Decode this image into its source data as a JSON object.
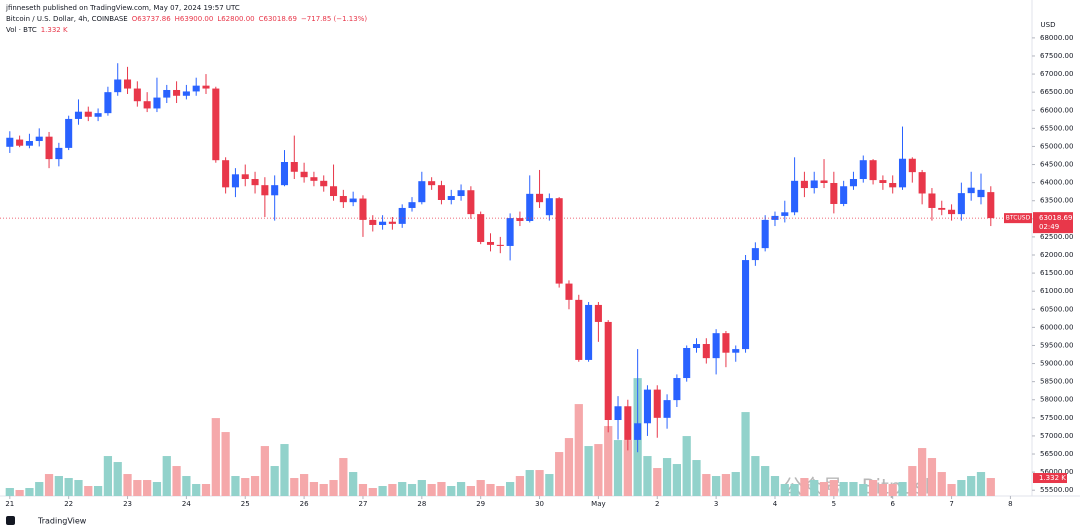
{
  "chart_data": {
    "type": "candlestick",
    "publisher": "jfinneseth published on TradingView.com, May 07, 2024 19:57 UTC",
    "title": "Bitcoin / U.S. Dollar, 4h, COINBASE",
    "ohlc_text": [
      "O63737.86",
      "H63900.00",
      "L62800.00",
      "C63018.69",
      "−717.85 (−1.13%)"
    ],
    "volume_title": "Vol · BTC",
    "volume_label": "1.332 K",
    "currency": "USD",
    "symbol": "BTCUSD",
    "countdown": "02:49",
    "brand": "TradingView",
    "watermark": "公众号 · Bitpush",
    "up_color": "#2962ff",
    "down_color": "#e8374a",
    "up_volume_color": "#92d2cb",
    "down_volume_color": "#f5a8aa",
    "open": [
      64990,
      65190,
      65020,
      65150,
      65270,
      64650,
      64960,
      65760,
      65960,
      65820,
      65920,
      66500,
      66850,
      66600,
      66250,
      66050,
      66350,
      66560,
      66400,
      66520,
      66680,
      66600,
      64620,
      63870,
      64230,
      64100,
      63930,
      63650,
      63930,
      64570,
      64300,
      64150,
      64050,
      63900,
      63630,
      63460,
      63560,
      62970,
      62830,
      62920,
      62860,
      63300,
      63460,
      64040,
      63930,
      63520,
      63630,
      63790,
      63130,
      62360,
      62280,
      62250,
      63020,
      62940,
      63690,
      63100,
      63570,
      61210,
      60760,
      59100,
      60620,
      60150,
      57440,
      57820,
      56890,
      57350,
      58280,
      57500,
      57990,
      58600,
      59430,
      59540,
      59150,
      59840,
      59300,
      59400,
      61860,
      62190,
      62970,
      63080,
      63180,
      64050,
      63850,
      64060,
      63990,
      63410,
      63900,
      64100,
      64620,
      64070,
      63990,
      63870,
      64660,
      64290,
      63700,
      63300,
      63250,
      63130,
      63710,
      63600,
      63737.86
    ],
    "high": [
      65420,
      65300,
      65350,
      65500,
      65400,
      65100,
      65850,
      66300,
      66100,
      66050,
      66650,
      67300,
      67200,
      66800,
      66500,
      66900,
      66700,
      66800,
      66700,
      66900,
      67000,
      66650,
      64700,
      64400,
      64500,
      64300,
      64150,
      64200,
      64900,
      65300,
      64550,
      64300,
      64200,
      64500,
      63800,
      63750,
      63650,
      63100,
      63100,
      63050,
      63400,
      63600,
      64300,
      64150,
      64050,
      63800,
      63950,
      63900,
      63200,
      62600,
      62500,
      63150,
      63200,
      64200,
      64350,
      63700,
      63600,
      61300,
      60900,
      60700,
      60700,
      60200,
      58100,
      58000,
      59400,
      58400,
      58400,
      58150,
      58700,
      59500,
      59700,
      59700,
      59950,
      59900,
      59500,
      62000,
      62350,
      63100,
      63200,
      63500,
      64700,
      64300,
      64300,
      64650,
      64300,
      64050,
      64300,
      64750,
      64650,
      64200,
      64200,
      65550,
      64700,
      64350,
      63850,
      63500,
      63400,
      64000,
      64300,
      64250,
      63900
    ],
    "low": [
      64820,
      64980,
      64950,
      65000,
      64400,
      64450,
      64900,
      65600,
      65700,
      65700,
      65850,
      66400,
      66450,
      66100,
      65950,
      65950,
      66200,
      66200,
      66300,
      66400,
      66450,
      64550,
      63700,
      63600,
      63900,
      63700,
      63050,
      62950,
      63900,
      64100,
      64000,
      63900,
      63750,
      63500,
      63300,
      63350,
      62500,
      62650,
      62700,
      62700,
      62750,
      63200,
      63400,
      63800,
      63400,
      63400,
      63500,
      63000,
      62300,
      62100,
      62050,
      61850,
      62800,
      62900,
      63300,
      62950,
      61100,
      60500,
      59050,
      59050,
      59600,
      57100,
      56900,
      56600,
      56550,
      57000,
      56950,
      57200,
      57800,
      58500,
      59300,
      59000,
      58700,
      58900,
      59050,
      59300,
      61700,
      62100,
      62800,
      62900,
      63100,
      63600,
      63700,
      63850,
      63150,
      63350,
      63800,
      64000,
      63950,
      63800,
      63700,
      63800,
      64000,
      63400,
      62950,
      63100,
      62950,
      62950,
      63500,
      63400,
      62800
    ],
    "close": [
      65240,
      65020,
      65150,
      65270,
      64650,
      64960,
      65760,
      65960,
      65820,
      65920,
      66500,
      66850,
      66600,
      66250,
      66050,
      66350,
      66560,
      66400,
      66520,
      66680,
      66600,
      64620,
      63870,
      64230,
      64100,
      63930,
      63650,
      63930,
      64570,
      64300,
      64150,
      64050,
      63900,
      63630,
      63460,
      63560,
      62970,
      62830,
      62920,
      62860,
      63300,
      63460,
      64040,
      63930,
      63520,
      63630,
      63790,
      63130,
      62360,
      62280,
      62250,
      63020,
      62940,
      63690,
      63460,
      63570,
      61210,
      60760,
      59100,
      60620,
      60150,
      57440,
      57820,
      56890,
      57350,
      58280,
      57500,
      57990,
      58600,
      59430,
      59540,
      59150,
      59840,
      59300,
      59400,
      61860,
      62190,
      62970,
      63080,
      63180,
      64050,
      63850,
      64060,
      63990,
      63410,
      63900,
      64100,
      64620,
      64070,
      63990,
      63870,
      64660,
      64290,
      63700,
      63300,
      63250,
      63130,
      63710,
      63860,
      63800,
      63018.69
    ],
    "volume": [
      592,
      444,
      592,
      1036,
      1628,
      1480,
      1332,
      1184,
      740,
      740,
      2960,
      2516,
      1628,
      1184,
      1184,
      1036,
      2960,
      2220,
      1480,
      888,
      888,
      5772,
      4736,
      1480,
      1332,
      1480,
      3700,
      2220,
      3848,
      1332,
      1628,
      1036,
      888,
      1184,
      2812,
      1776,
      888,
      592,
      740,
      888,
      1036,
      888,
      1184,
      888,
      1036,
      740,
      1036,
      740,
      1184,
      888,
      740,
      1036,
      1480,
      1924,
      1924,
      1628,
      3256,
      4292,
      6808,
      3700,
      3848,
      5180,
      4144,
      4144,
      8732,
      2960,
      2072,
      2812,
      2368,
      4440,
      2664,
      1628,
      1480,
      1628,
      1776,
      6216,
      2960,
      2220,
      1480,
      888,
      888,
      1332,
      1184,
      1036,
      1184,
      1036,
      1036,
      888,
      1184,
      888,
      888,
      1036,
      2220,
      3552,
      2812,
      1776,
      888,
      1184,
      1480,
      1776,
      1332
    ],
    "volume_ylim": [
      0,
      35700
    ],
    "ylim": [
      55340,
      68660
    ],
    "yticks": [
      {
        "value": 55500,
        "label": "55500.00"
      },
      {
        "value": 56000,
        "label": "56000.00"
      },
      {
        "value": 56500,
        "label": "56500.00"
      },
      {
        "value": 57000,
        "label": "57000.00"
      },
      {
        "value": 57500,
        "label": "57500.00"
      },
      {
        "value": 58000,
        "label": "58000.00"
      },
      {
        "value": 58500,
        "label": "58500.00"
      },
      {
        "value": 59000,
        "label": "59000.00"
      },
      {
        "value": 59500,
        "label": "59500.00"
      },
      {
        "value": 60000,
        "label": "60000.00"
      },
      {
        "value": 60500,
        "label": "60500.00"
      },
      {
        "value": 61000,
        "label": "61000.00"
      },
      {
        "value": 61500,
        "label": "61500.00"
      },
      {
        "value": 62000,
        "label": "62000.00"
      },
      {
        "value": 62500,
        "label": "62500.00"
      },
      {
        "value": 63000,
        "label": "63000.00"
      },
      {
        "value": 63500,
        "label": "63500.00"
      },
      {
        "value": 64000,
        "label": "64000.00"
      },
      {
        "value": 64500,
        "label": "64500.00"
      },
      {
        "value": 65000,
        "label": "65000.00"
      },
      {
        "value": 65500,
        "label": "65500.00"
      },
      {
        "value": 66000,
        "label": "66000.00"
      },
      {
        "value": 66500,
        "label": "66500.00"
      },
      {
        "value": 67000,
        "label": "67000.00"
      },
      {
        "value": 67500,
        "label": "67500.00"
      },
      {
        "value": 68000,
        "label": "68000.00"
      }
    ],
    "xlim": [
      -1,
      104.2
    ],
    "xticks": [
      {
        "value": 0,
        "label": "21"
      },
      {
        "value": 6,
        "label": "22"
      },
      {
        "value": 12,
        "label": "23"
      },
      {
        "value": 18,
        "label": "24"
      },
      {
        "value": 24,
        "label": "25"
      },
      {
        "value": 30,
        "label": "26"
      },
      {
        "value": 36,
        "label": "27"
      },
      {
        "value": 42,
        "label": "28"
      },
      {
        "value": 48,
        "label": "29"
      },
      {
        "value": 54,
        "label": "30"
      },
      {
        "value": 60,
        "label": "May"
      },
      {
        "value": 66,
        "label": "2"
      },
      {
        "value": 72,
        "label": "3"
      },
      {
        "value": 78,
        "label": "4"
      },
      {
        "value": 84,
        "label": "5"
      },
      {
        "value": 90,
        "label": "6"
      },
      {
        "value": 96,
        "label": "7"
      },
      {
        "value": 102,
        "label": "8"
      }
    ]
  }
}
